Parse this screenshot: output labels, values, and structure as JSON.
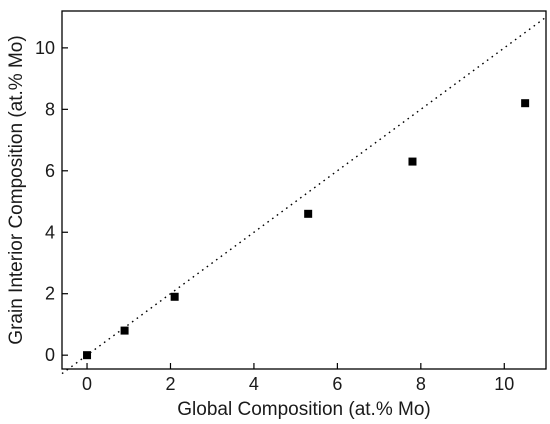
{
  "chart_data": {
    "type": "scatter",
    "title": "",
    "xlabel": "Global Composition (at.% Mo)",
    "ylabel": "Grain Interior Composition (at.% Mo)",
    "xlim": [
      -0.6,
      11.0
    ],
    "ylim": [
      -0.45,
      11.2
    ],
    "xticks": [
      0,
      2,
      4,
      6,
      8,
      10
    ],
    "yticks": [
      0,
      2,
      4,
      6,
      8,
      10
    ],
    "grid": false,
    "legend": "none",
    "marker": "square",
    "marker_color": "#000000",
    "reference_line": {
      "style": "dotted",
      "from": [
        -0.6,
        -0.6
      ],
      "to": [
        11.0,
        11.0
      ]
    },
    "points": [
      {
        "x": 0.0,
        "y": 0.0
      },
      {
        "x": 0.9,
        "y": 0.8
      },
      {
        "x": 2.1,
        "y": 1.9
      },
      {
        "x": 5.3,
        "y": 4.6
      },
      {
        "x": 7.8,
        "y": 6.3
      },
      {
        "x": 10.5,
        "y": 8.2
      }
    ]
  }
}
